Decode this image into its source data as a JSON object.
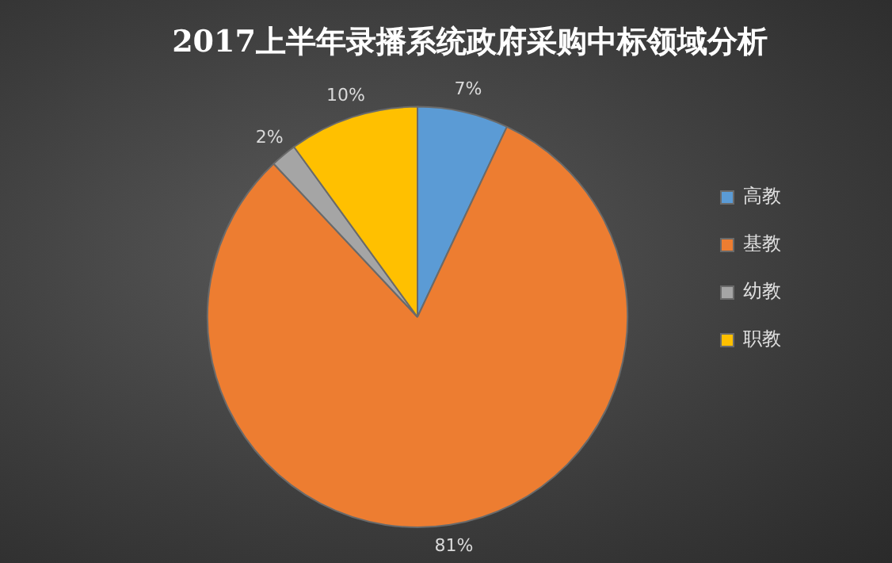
{
  "chart_data": {
    "type": "pie",
    "title": "2017上半年录播系统政府采购中标领域分析",
    "categories": [
      "高教",
      "基教",
      "幼教",
      "职教"
    ],
    "values": [
      7,
      81,
      2,
      10
    ],
    "colors": [
      "#5b9bd5",
      "#ed7d31",
      "#a5a5a5",
      "#ffc000"
    ],
    "value_labels": [
      "7%",
      "81%",
      "2%",
      "10%"
    ],
    "legend": "right"
  }
}
